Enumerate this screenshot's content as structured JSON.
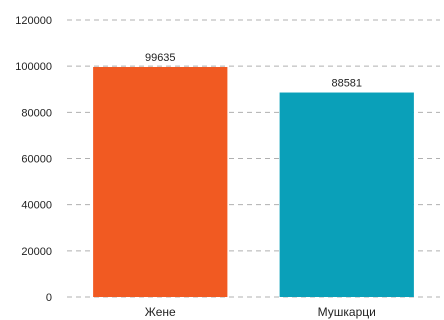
{
  "chart_data": {
    "type": "bar",
    "categories": [
      "Жене",
      "Мушкарци"
    ],
    "values": [
      99635,
      88581
    ],
    "data_labels": [
      "99635",
      "88581"
    ],
    "colors": [
      "#f15a22",
      "#0aa0b9"
    ],
    "yticks": [
      "0",
      "20000",
      "40000",
      "60000",
      "80000",
      "100000",
      "120000"
    ],
    "ylim": [
      0,
      120000
    ],
    "grid": true,
    "legend": false
  }
}
